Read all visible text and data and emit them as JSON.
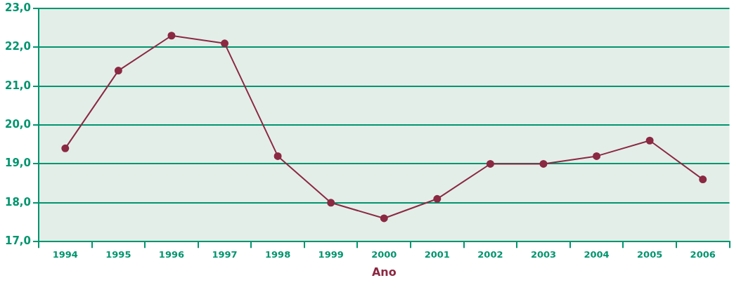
{
  "chart_data": {
    "type": "line",
    "xlabel": "Ano",
    "categories": [
      "1994",
      "1995",
      "1996",
      "1997",
      "1998",
      "1999",
      "2000",
      "2001",
      "2002",
      "2003",
      "2004",
      "2005",
      "2006"
    ],
    "series": [
      {
        "color": "#8b2942",
        "values": [
          19.4,
          21.4,
          22.3,
          22.1,
          19.2,
          18.0,
          17.6,
          18.1,
          19.0,
          19.0,
          19.2,
          19.6,
          18.6
        ]
      }
    ],
    "ylim": [
      17,
      23
    ],
    "yticks": [
      {
        "value": 17,
        "label": "17,0"
      },
      {
        "value": 18,
        "label": "18,0"
      },
      {
        "value": 19,
        "label": "19,0"
      },
      {
        "value": 20,
        "label": "20,0"
      },
      {
        "value": 21,
        "label": "21,0"
      },
      {
        "value": 22,
        "label": "22,0"
      },
      {
        "value": 23,
        "label": "23,0"
      }
    ],
    "grid": "y",
    "marker": "circle",
    "line_style": "solid",
    "legend": false
  }
}
